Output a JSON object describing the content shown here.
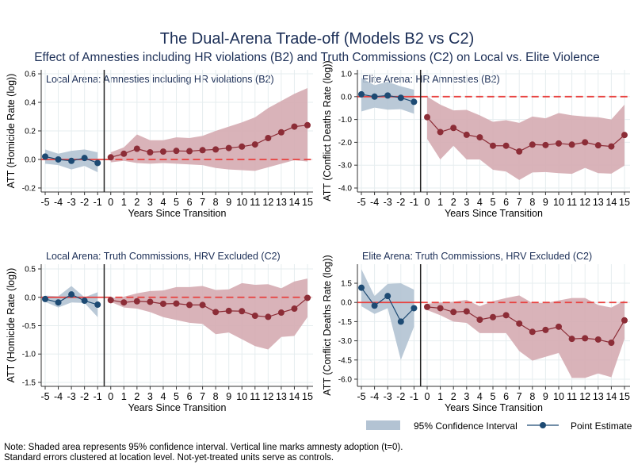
{
  "title": "The Dual-Arena Trade-off (Models B2 vs C2)",
  "subtitle": "Effect of Amnesties including HR violations (B2) and Truth Commissions (C2) on Local vs. Elite Violence",
  "legend": {
    "ci_label": "95% Confidence Interval",
    "estimate_label": "Point Estimate",
    "placement": "bottom-right"
  },
  "notes": [
    "Note: Shaded area represents 95% confidence interval. Vertical line marks amnesty adoption (t=0).",
    "Standard errors clustered at location level. Not-yet-treated units serve as controls."
  ],
  "colors": {
    "pre": "#1d4a73",
    "pre_band": "#b3c3d3",
    "post": "#8c2d37",
    "post_band": "#d5abb1",
    "zero_line": "#e8413f",
    "title": "#1c2f57"
  },
  "chart_data": [
    {
      "type": "line",
      "title": "Local Arena: Amnesties including HR violations (B2)",
      "xlabel": "Years Since Transition",
      "ylabel": "ATT (Homicide Rate (log))",
      "ylim": [
        -0.228,
        0.628
      ],
      "yticks": [
        0.6,
        0.4,
        0.2,
        0.0,
        -0.2
      ],
      "ytick_labels": [
        "0.6",
        "0.4",
        "0.2",
        "0.0",
        "-0.2"
      ],
      "x": [
        -5,
        -4,
        -3,
        -2,
        -1,
        0,
        1,
        2,
        3,
        4,
        5,
        6,
        7,
        8,
        9,
        10,
        11,
        12,
        13,
        14,
        15
      ],
      "estimate": [
        0.02,
        0.0,
        -0.01,
        0.01,
        -0.025,
        0.015,
        0.04,
        0.075,
        0.05,
        0.055,
        0.06,
        0.058,
        0.065,
        0.07,
        0.08,
        0.09,
        0.105,
        0.15,
        0.19,
        0.23,
        0.24
      ],
      "ci_lower": [
        -0.03,
        -0.04,
        -0.07,
        -0.045,
        -0.09,
        -0.02,
        -0.01,
        -0.025,
        -0.03,
        -0.025,
        -0.03,
        -0.035,
        -0.04,
        -0.06,
        -0.07,
        -0.075,
        -0.08,
        -0.055,
        -0.03,
        -0.005,
        -0.015
      ],
      "ci_upper": [
        0.07,
        0.04,
        0.06,
        0.07,
        0.05,
        0.05,
        0.085,
        0.175,
        0.135,
        0.135,
        0.155,
        0.15,
        0.165,
        0.2,
        0.23,
        0.26,
        0.295,
        0.36,
        0.41,
        0.46,
        0.5
      ],
      "grid": true
    },
    {
      "type": "line",
      "title": "Elite Arena: HR Amnesties (B2)",
      "xlabel": "Years Since Transition",
      "ylabel": "ATT (Conflict Deaths Rate (log))",
      "ylim": [
        -4.174,
        1.174
      ],
      "yticks": [
        1.0,
        0.0,
        -1.0,
        -2.0,
        -3.0,
        -4.0
      ],
      "ytick_labels": [
        "1.0",
        "0.0",
        "-1.0",
        "-2.0",
        "-3.0",
        "-4.0"
      ],
      "x": [
        -5,
        -4,
        -3,
        -2,
        -1,
        0,
        1,
        2,
        3,
        4,
        5,
        6,
        7,
        8,
        9,
        10,
        11,
        12,
        13,
        14,
        15
      ],
      "estimate": [
        0.1,
        0.0,
        0.05,
        -0.05,
        -0.23,
        -0.9,
        -1.55,
        -1.37,
        -1.67,
        -1.78,
        -2.15,
        -2.15,
        -2.4,
        -2.1,
        -2.12,
        -2.05,
        -2.1,
        -2.0,
        -2.13,
        -2.18,
        -1.68
      ],
      "ci_lower": [
        -0.65,
        -0.48,
        -0.57,
        -0.55,
        -0.75,
        -1.85,
        -2.75,
        -2.15,
        -2.75,
        -2.75,
        -3.2,
        -3.28,
        -3.65,
        -3.32,
        -3.3,
        -3.35,
        -3.38,
        -3.12,
        -3.35,
        -3.37,
        -3.02
      ],
      "ci_upper": [
        0.82,
        0.5,
        0.65,
        0.45,
        0.3,
        0.0,
        -0.35,
        -0.6,
        -0.58,
        -0.82,
        -1.1,
        -1.03,
        -1.15,
        -0.87,
        -0.95,
        -0.72,
        -0.82,
        -0.87,
        -0.9,
        -1.0,
        -0.35
      ],
      "grid": true
    },
    {
      "type": "line",
      "title": "Local Arena: Truth Commissions, HRV Excluded (C2)",
      "xlabel": "Years Since Transition",
      "ylabel": "ATT (Homicide Rate (log))",
      "ylim": [
        -1.57,
        0.584
      ],
      "yticks": [
        0.5,
        0.0,
        -0.5,
        -1.0,
        -1.5
      ],
      "ytick_labels": [
        "0.5",
        "0.0",
        "-0.5",
        "-1.0",
        "-1.5"
      ],
      "x": [
        -5,
        -4,
        -3,
        -2,
        -1,
        0,
        1,
        2,
        3,
        4,
        5,
        6,
        7,
        8,
        9,
        10,
        11,
        12,
        13,
        14,
        15
      ],
      "estimate": [
        -0.03,
        -0.09,
        0.05,
        -0.06,
        -0.13,
        -0.05,
        -0.09,
        -0.07,
        -0.08,
        -0.115,
        -0.11,
        -0.135,
        -0.135,
        -0.26,
        -0.24,
        -0.245,
        -0.325,
        -0.345,
        -0.27,
        -0.2,
        -0.01
      ],
      "ci_lower": [
        -0.08,
        -0.18,
        -0.09,
        -0.1,
        -0.35,
        -0.08,
        -0.18,
        -0.2,
        -0.26,
        -0.35,
        -0.4,
        -0.45,
        -0.47,
        -0.65,
        -0.62,
        -0.74,
        -0.86,
        -0.92,
        -0.7,
        -0.68,
        -0.35
      ],
      "ci_upper": [
        0.03,
        0.02,
        0.2,
        0.0,
        0.09,
        -0.02,
        0.01,
        0.07,
        0.11,
        0.12,
        0.18,
        0.18,
        0.2,
        0.13,
        0.14,
        0.25,
        0.22,
        0.23,
        0.16,
        0.28,
        0.33
      ],
      "grid": true
    },
    {
      "type": "line",
      "title": "Elite Arena: Truth Commissions, HRV Excluded (C2)",
      "xlabel": "Years Since Transition",
      "ylabel": "ATT (Conflict Deaths Rate (log))",
      "ylim": [
        -6.56,
        2.99
      ],
      "yticks": [
        1.5,
        0.0,
        -1.5,
        -3.0,
        -4.5,
        -6.0
      ],
      "ytick_labels": [
        "1.5",
        "0.0",
        "-1.5",
        "-3.0",
        "-4.5",
        "-6.0"
      ],
      "x": [
        -5,
        -4,
        -3,
        -2,
        -1,
        0,
        1,
        2,
        3,
        4,
        5,
        6,
        7,
        8,
        9,
        10,
        11,
        12,
        13,
        14,
        15
      ],
      "estimate": [
        1.15,
        -0.25,
        0.5,
        -1.5,
        -0.45,
        -0.35,
        -0.45,
        -0.75,
        -0.7,
        -1.35,
        -1.15,
        -1.0,
        -1.65,
        -2.3,
        -2.15,
        -1.9,
        -2.85,
        -2.8,
        -2.9,
        -3.15,
        -1.4
      ],
      "ci_lower": [
        -0.3,
        -0.9,
        -0.45,
        -4.5,
        -1.9,
        -0.6,
        -1.0,
        -1.5,
        -1.6,
        -2.4,
        -2.4,
        -2.4,
        -3.8,
        -4.55,
        -4.25,
        -3.95,
        -5.9,
        -5.9,
        -5.55,
        -5.85,
        -2.85
      ],
      "ci_upper": [
        2.6,
        0.5,
        1.45,
        1.5,
        1.0,
        -0.1,
        0.0,
        0.05,
        0.2,
        -0.3,
        0.1,
        0.35,
        0.55,
        -0.05,
        -0.05,
        0.15,
        0.35,
        0.35,
        -0.2,
        -0.4,
        0.15
      ],
      "grid": true
    }
  ]
}
